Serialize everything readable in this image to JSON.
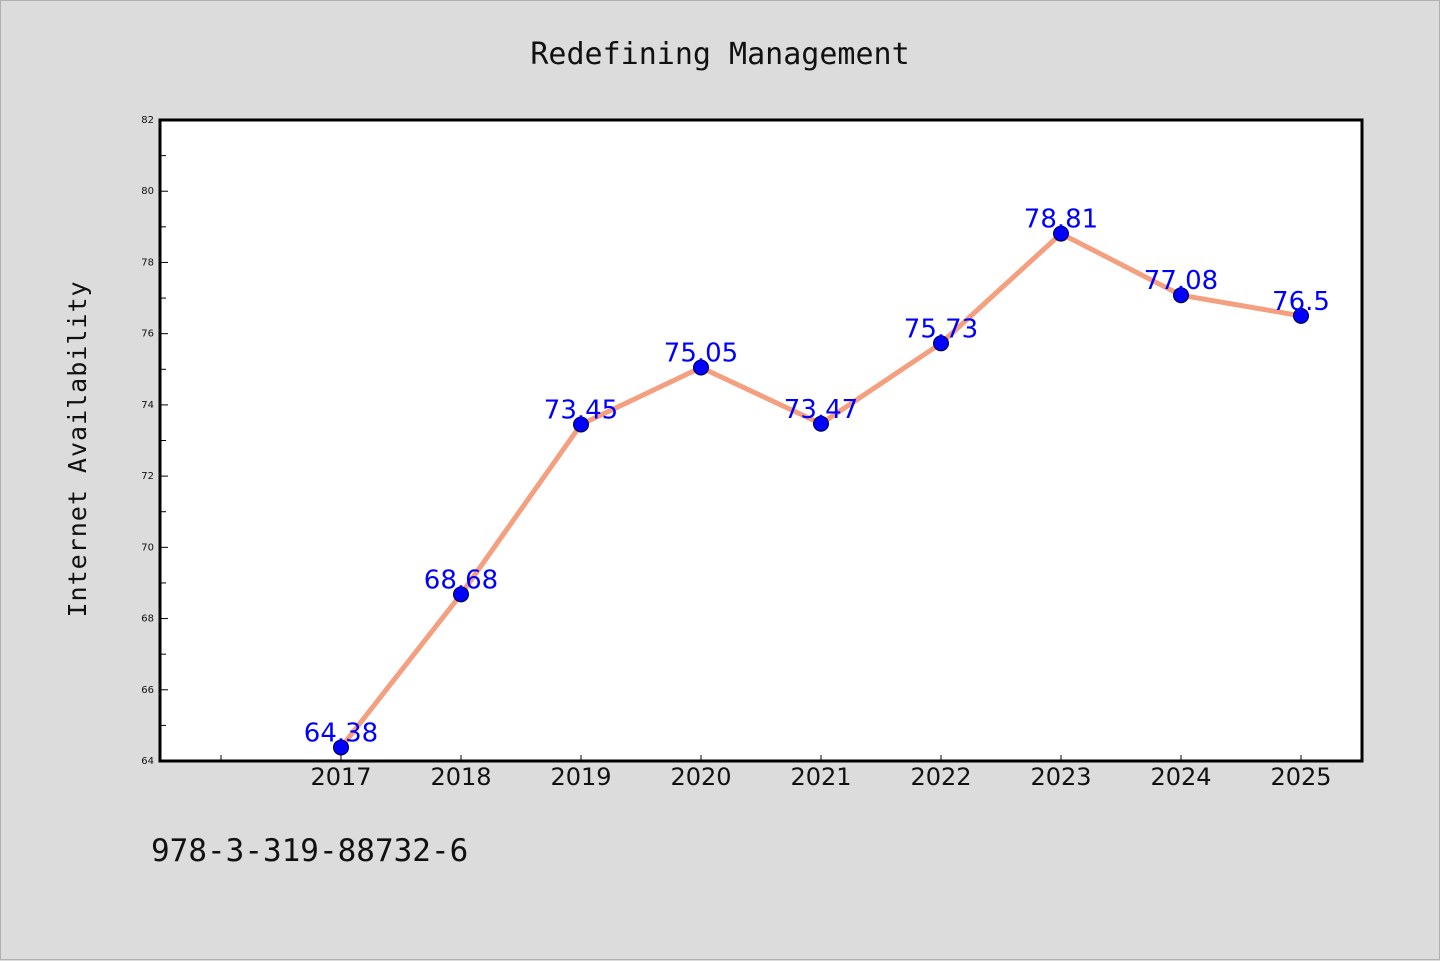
{
  "chart_data": {
    "type": "line",
    "title": "Redefining Management",
    "xlabel": "",
    "ylabel": "Internet Availability",
    "categories": [
      "2017",
      "2018",
      "2019",
      "2020",
      "2021",
      "2022",
      "2023",
      "2024",
      "2025"
    ],
    "values": [
      64.38,
      68.68,
      73.45,
      75.05,
      73.47,
      75.73,
      78.81,
      77.08,
      76.5
    ],
    "data_labels": [
      "64.38",
      "68.68",
      "73.45",
      "75.05",
      "73.47",
      "75.73",
      "78.81",
      "77.08",
      "76.5"
    ],
    "ylim": [
      64,
      82
    ],
    "yticks": [
      "64",
      "66",
      "68",
      "70",
      "72",
      "74",
      "76",
      "78",
      "80",
      "82"
    ],
    "grid": false,
    "line_color": "#f4a080",
    "marker_color": "#0000ff",
    "label_color": "#0000ff"
  },
  "footer": {
    "isbn": "978-3-319-88732-6"
  }
}
